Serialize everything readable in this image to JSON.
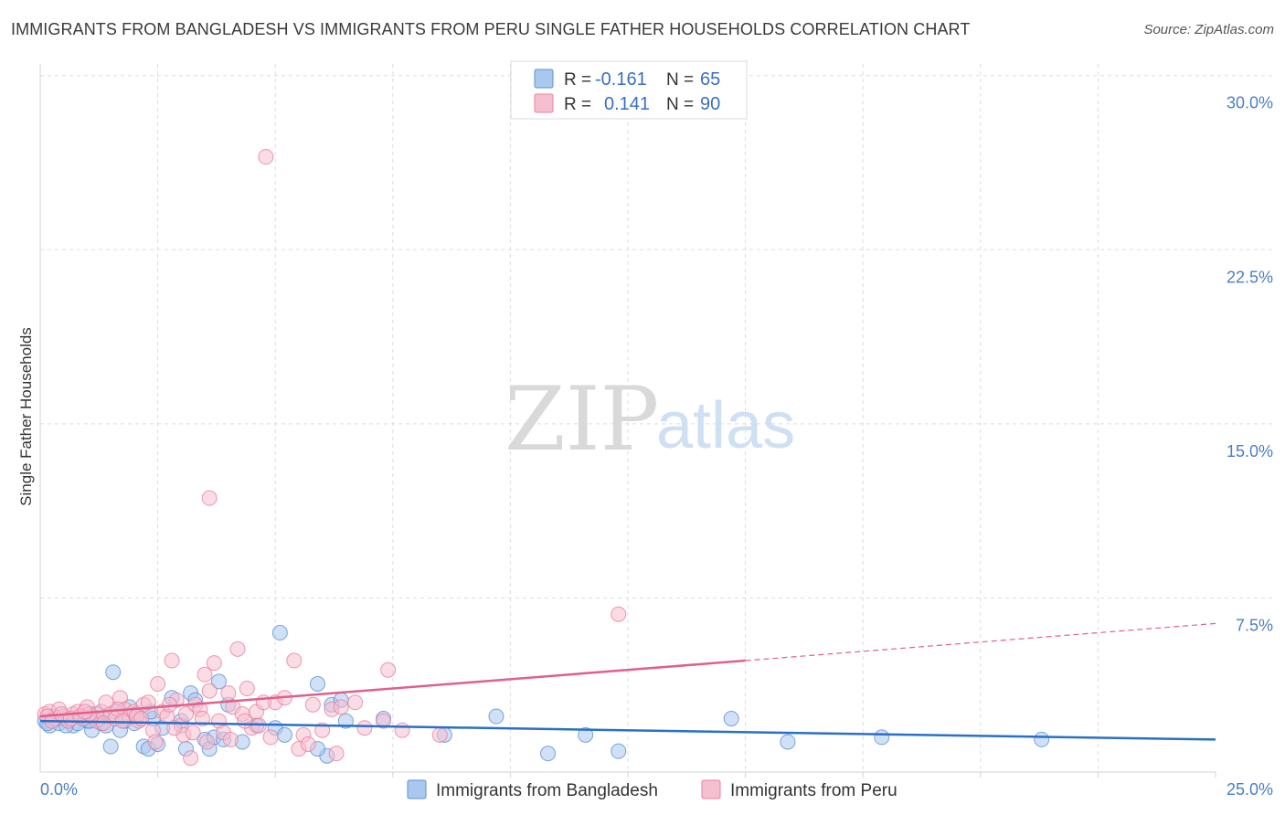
{
  "title": "IMMIGRANTS FROM BANGLADESH VS IMMIGRANTS FROM PERU SINGLE FATHER HOUSEHOLDS CORRELATION CHART",
  "source": "Source: ZipAtlas.com",
  "watermark": {
    "zip": "ZIP",
    "atlas": "atlas"
  },
  "colors": {
    "bangladesh_fill": "#aac8ee",
    "bangladesh_stroke": "#5b8fd6",
    "bangladesh_line": "#2a6fc9",
    "peru_fill": "#f6bfd0",
    "peru_stroke": "#e8809f",
    "peru_line": "#e0608a",
    "grid": "#d9dde3",
    "tick_label": "#4a7fc4"
  },
  "legend": {
    "rows": [
      {
        "r_label": "R =",
        "r_value": "-0.161",
        "n_label": "N =",
        "n_value": "65"
      },
      {
        "r_label": "R =",
        "r_value": "0.141",
        "n_label": "N =",
        "n_value": "90"
      }
    ]
  },
  "chart_data": {
    "type": "scatter",
    "title": "IMMIGRANTS FROM BANGLADESH VS IMMIGRANTS FROM PERU SINGLE FATHER HOUSEHOLDS CORRELATION CHART",
    "xlabel": "",
    "ylabel": "Single Father Households",
    "xlim": [
      0,
      25
    ],
    "ylim": [
      0,
      30.5
    ],
    "x_tick_labels": [
      "0.0%",
      "25.0%"
    ],
    "y_ticks": [
      7.5,
      15.0,
      22.5,
      30.0
    ],
    "y_tick_labels": [
      "7.5%",
      "15.0%",
      "22.5%",
      "30.0%"
    ],
    "grid": true,
    "series": [
      {
        "name": "Immigrants from Bangladesh",
        "r": -0.161,
        "n": 65,
        "trend": {
          "x0": 0,
          "y0": 2.2,
          "x1": 25,
          "y1": 1.4
        },
        "points": [
          [
            0.1,
            2.2
          ],
          [
            0.2,
            2.0
          ],
          [
            0.3,
            2.4
          ],
          [
            0.4,
            2.1
          ],
          [
            0.5,
            2.3
          ],
          [
            0.6,
            2.2
          ],
          [
            0.7,
            2.0
          ],
          [
            0.8,
            2.1
          ],
          [
            0.9,
            2.4
          ],
          [
            1.0,
            2.2
          ],
          [
            1.1,
            1.8
          ],
          [
            1.2,
            2.5
          ],
          [
            1.3,
            2.1
          ],
          [
            1.4,
            2.0
          ],
          [
            1.5,
            1.1
          ],
          [
            1.6,
            2.6
          ],
          [
            1.7,
            1.8
          ],
          [
            1.8,
            2.2
          ],
          [
            1.9,
            2.8
          ],
          [
            2.0,
            2.1
          ],
          [
            2.2,
            1.1
          ],
          [
            2.3,
            1.0
          ],
          [
            2.4,
            2.3
          ],
          [
            2.5,
            1.2
          ],
          [
            2.6,
            1.9
          ],
          [
            2.8,
            3.2
          ],
          [
            3.0,
            2.2
          ],
          [
            3.2,
            3.4
          ],
          [
            3.3,
            3.1
          ],
          [
            3.5,
            1.4
          ],
          [
            3.6,
            1.0
          ],
          [
            3.7,
            1.5
          ],
          [
            3.8,
            3.9
          ],
          [
            3.9,
            1.4
          ],
          [
            4.0,
            2.9
          ],
          [
            4.3,
            1.3
          ],
          [
            4.6,
            2.0
          ],
          [
            5.0,
            1.9
          ],
          [
            5.1,
            6.0
          ],
          [
            5.2,
            1.6
          ],
          [
            5.9,
            3.8
          ],
          [
            6.1,
            0.7
          ],
          [
            6.2,
            2.9
          ],
          [
            6.4,
            3.1
          ],
          [
            6.5,
            2.2
          ],
          [
            7.3,
            2.3
          ],
          [
            8.6,
            1.6
          ],
          [
            9.7,
            2.4
          ],
          [
            10.8,
            0.8
          ],
          [
            11.6,
            1.6
          ],
          [
            12.3,
            0.9
          ],
          [
            14.7,
            2.3
          ],
          [
            15.9,
            1.3
          ],
          [
            17.9,
            1.5
          ],
          [
            21.3,
            1.4
          ],
          [
            0.15,
            2.1
          ],
          [
            0.35,
            2.3
          ],
          [
            0.55,
            2.0
          ],
          [
            1.05,
            2.2
          ],
          [
            1.25,
            2.3
          ],
          [
            1.55,
            4.3
          ],
          [
            2.35,
            2.6
          ],
          [
            3.1,
            1.0
          ],
          [
            5.9,
            1.0
          ],
          [
            2.05,
            2.5
          ]
        ]
      },
      {
        "name": "Immigrants from Peru",
        "r": 0.141,
        "n": 90,
        "trend_solid": {
          "x0": 0,
          "y0": 2.4,
          "x1": 15,
          "y1": 4.8
        },
        "trend_dashed": {
          "x0": 15,
          "y0": 4.8,
          "x1": 25,
          "y1": 6.4
        },
        "points": [
          [
            0.1,
            2.5
          ],
          [
            0.2,
            2.6
          ],
          [
            0.3,
            2.3
          ],
          [
            0.4,
            2.7
          ],
          [
            0.5,
            2.4
          ],
          [
            0.6,
            2.2
          ],
          [
            0.7,
            2.5
          ],
          [
            0.8,
            2.6
          ],
          [
            0.9,
            2.3
          ],
          [
            1.0,
            2.8
          ],
          [
            1.1,
            2.4
          ],
          [
            1.2,
            2.2
          ],
          [
            1.3,
            2.6
          ],
          [
            1.4,
            3.0
          ],
          [
            1.5,
            2.5
          ],
          [
            1.6,
            2.3
          ],
          [
            1.7,
            3.2
          ],
          [
            1.8,
            2.7
          ],
          [
            1.9,
            2.4
          ],
          [
            2.0,
            2.6
          ],
          [
            2.1,
            2.2
          ],
          [
            2.2,
            2.9
          ],
          [
            2.3,
            3.0
          ],
          [
            2.4,
            1.8
          ],
          [
            2.5,
            3.8
          ],
          [
            2.6,
            2.6
          ],
          [
            2.7,
            2.4
          ],
          [
            2.8,
            4.8
          ],
          [
            2.9,
            3.1
          ],
          [
            3.0,
            2.0
          ],
          [
            3.1,
            2.5
          ],
          [
            3.2,
            0.6
          ],
          [
            3.3,
            2.9
          ],
          [
            3.4,
            2.7
          ],
          [
            3.5,
            4.2
          ],
          [
            3.6,
            3.5
          ],
          [
            3.7,
            4.7
          ],
          [
            3.8,
            2.2
          ],
          [
            3.9,
            1.7
          ],
          [
            4.0,
            3.4
          ],
          [
            4.1,
            2.8
          ],
          [
            4.2,
            5.3
          ],
          [
            4.3,
            2.5
          ],
          [
            4.4,
            3.6
          ],
          [
            4.5,
            1.9
          ],
          [
            4.6,
            2.6
          ],
          [
            4.8,
            26.5
          ],
          [
            4.9,
            1.5
          ],
          [
            5.0,
            3.0
          ],
          [
            5.2,
            3.2
          ],
          [
            5.4,
            4.8
          ],
          [
            5.5,
            1.0
          ],
          [
            5.6,
            1.6
          ],
          [
            6.0,
            1.8
          ],
          [
            6.2,
            2.7
          ],
          [
            6.4,
            2.8
          ],
          [
            6.7,
            3.0
          ],
          [
            7.3,
            2.2
          ],
          [
            7.4,
            4.4
          ],
          [
            7.7,
            1.8
          ],
          [
            8.5,
            1.6
          ],
          [
            12.3,
            6.8
          ],
          [
            3.6,
            11.8
          ],
          [
            0.15,
            2.4
          ],
          [
            0.25,
            2.2
          ],
          [
            0.45,
            2.5
          ],
          [
            0.65,
            2.3
          ],
          [
            0.85,
            2.4
          ],
          [
            1.05,
            2.5
          ],
          [
            1.35,
            2.1
          ],
          [
            1.65,
            2.7
          ],
          [
            2.05,
            2.4
          ],
          [
            2.45,
            1.3
          ],
          [
            2.75,
            2.9
          ],
          [
            3.05,
            1.6
          ],
          [
            3.55,
            1.3
          ],
          [
            4.05,
            1.4
          ],
          [
            4.35,
            2.2
          ],
          [
            4.65,
            2.0
          ],
          [
            5.8,
            2.9
          ],
          [
            6.9,
            1.9
          ],
          [
            3.25,
            1.7
          ],
          [
            2.15,
            2.3
          ],
          [
            1.75,
            2.2
          ],
          [
            0.95,
            2.6
          ],
          [
            4.75,
            3.0
          ],
          [
            6.3,
            0.8
          ],
          [
            5.7,
            1.2
          ],
          [
            2.85,
            1.9
          ],
          [
            3.45,
            2.3
          ]
        ]
      }
    ]
  },
  "bottom_legend": {
    "bangladesh_label": "Immigrants from Bangladesh",
    "peru_label": "Immigrants from Peru"
  }
}
